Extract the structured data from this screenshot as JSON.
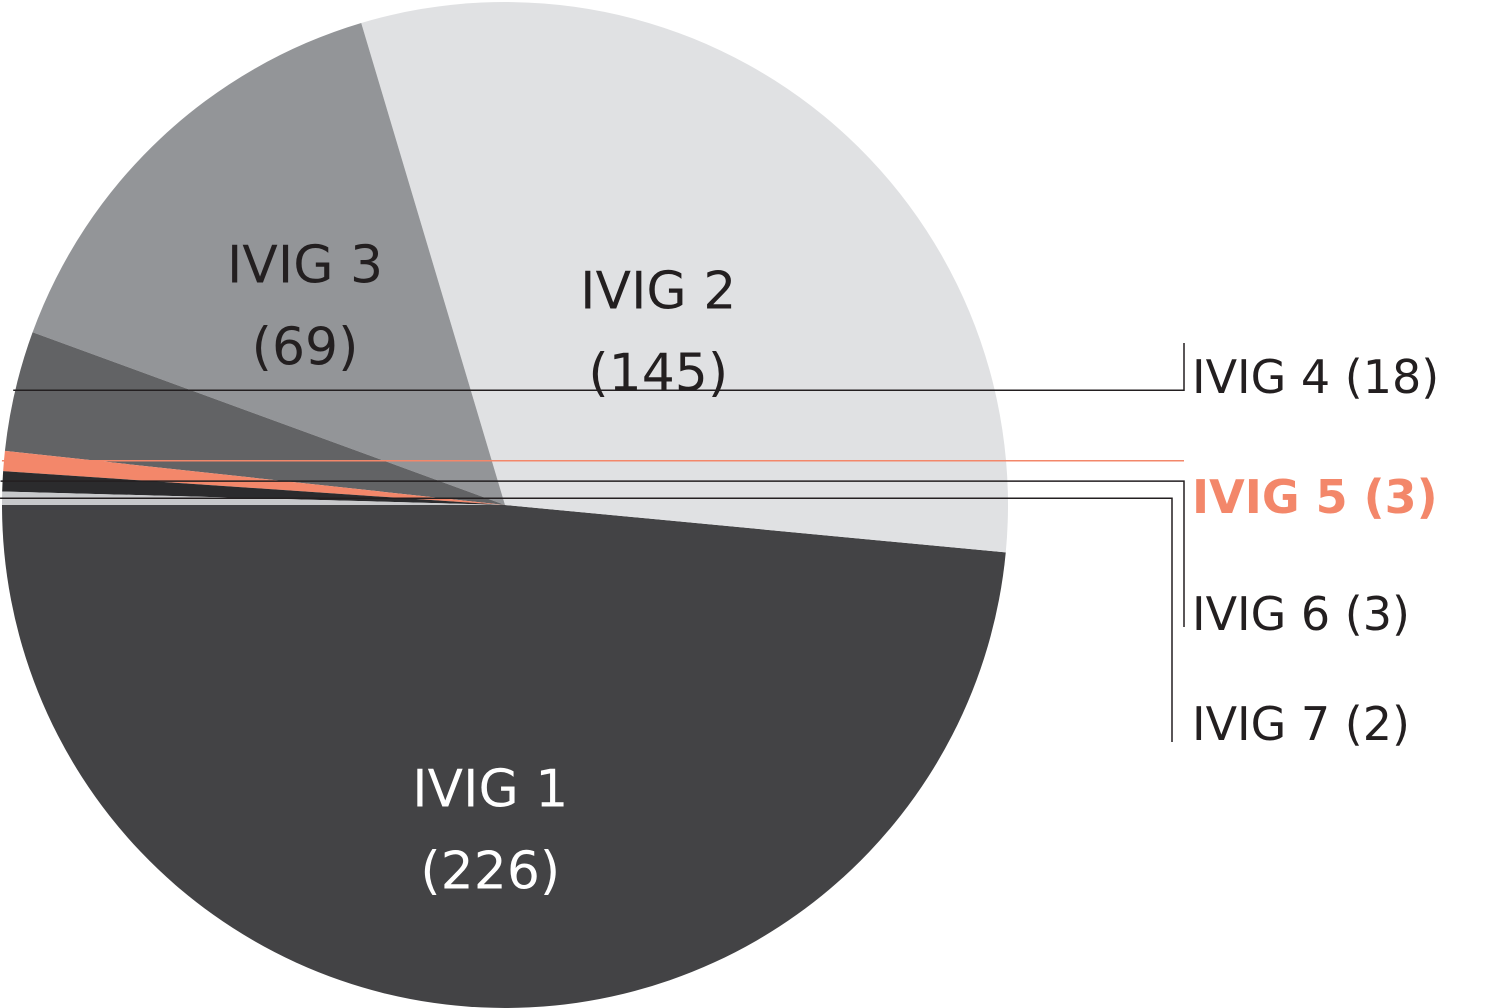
{
  "chart_data": {
    "type": "pie",
    "slices": [
      {
        "name": "IVIG 1",
        "value": 226,
        "value_text": "(226)",
        "color": "#434345",
        "text_color": "#ffffff"
      },
      {
        "name": "IVIG 2",
        "value": 145,
        "value_text": "(145)",
        "color": "#e0e1e3",
        "text_color": "#231f20"
      },
      {
        "name": "IVIG 3",
        "value": 69,
        "value_text": "(69)",
        "color": "#939598",
        "text_color": "#231f20"
      },
      {
        "name": "IVIG 4",
        "value": 18,
        "value_text": "(18)",
        "color": "#626365",
        "text_color": "#231f20"
      },
      {
        "name": "IVIG 5",
        "value": 3,
        "value_text": "(3)",
        "color": "#f3876a",
        "text_color": "#f3876a"
      },
      {
        "name": "IVIG 6",
        "value": 3,
        "value_text": "(3)",
        "color": "#2b2b2d",
        "text_color": "#231f20"
      },
      {
        "name": "IVIG 7",
        "value": 2,
        "value_text": "(2)",
        "color": "#c8c9cb",
        "text_color": "#231f20"
      }
    ],
    "start": "9 o'clock",
    "direction": "counterclockwise",
    "inline_labels": [
      "IVIG 1",
      "IVIG 2",
      "IVIG 3"
    ],
    "callout_labels": [
      "IVIG 4",
      "IVIG 5",
      "IVIG 6",
      "IVIG 7"
    ]
  }
}
